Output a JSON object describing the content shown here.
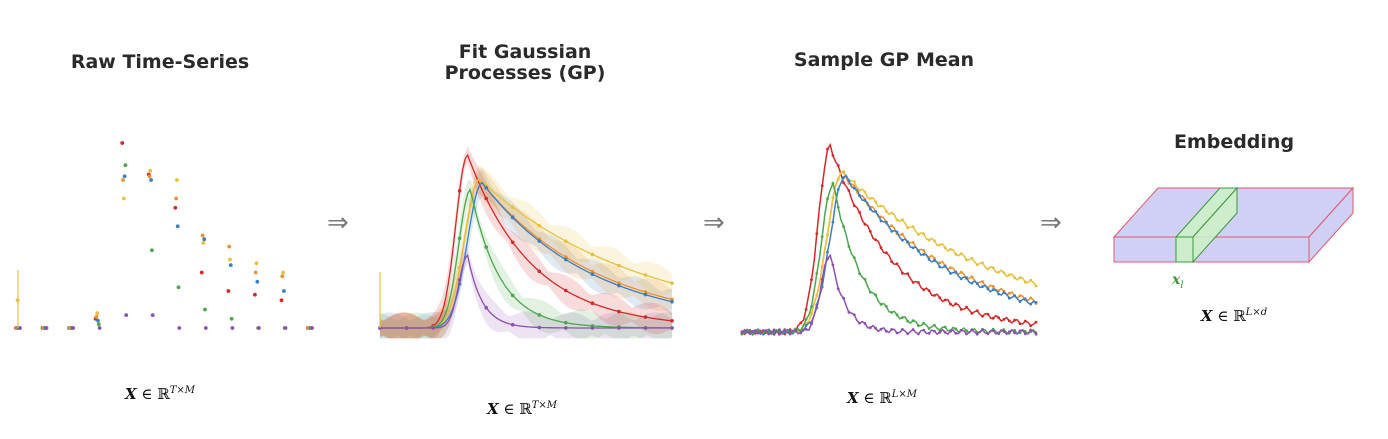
{
  "panels": [
    {
      "title_line1": "Raw Time-Series",
      "title_line2": "",
      "math_var": "X",
      "math_space": "∈ ℝ",
      "math_sup": "T×M"
    },
    {
      "title_line1": "Fit Gaussian",
      "title_line2": "Processes (GP)",
      "math_var": "X",
      "math_space": "∈ ℝ",
      "math_sup": "T×M"
    },
    {
      "title_line1": "Sample GP Mean",
      "title_line2": "",
      "math_var": "X",
      "math_space": "∈ ℝ",
      "math_sup": "L×M"
    },
    {
      "title_line1": "Embedding",
      "title_line2": "",
      "math_var": "X",
      "math_space": "∈ ℝ",
      "math_sup": "L×d"
    }
  ],
  "arrow_symbol": "⇒",
  "embedding_label": {
    "var": "x",
    "sub": "l"
  },
  "colors": {
    "red": "#d62728",
    "orange": "#f28e2b",
    "yellow": "#e8c13a",
    "blue": "#3a7fc0",
    "green": "#4aa84a",
    "purple": "#8e4fb0",
    "box_fill": "#c8c8f4",
    "box_edge": "#e05a6a",
    "slice_fill": "#ccf2c4",
    "slice_edge": "#3a9a3a"
  },
  "series_colors": [
    "red",
    "orange",
    "yellow",
    "blue",
    "green",
    "purple"
  ],
  "raw_times": [
    0,
    1,
    2,
    3,
    4,
    5,
    6,
    7,
    8,
    9,
    10,
    11
  ],
  "raw_values": {
    "red": [
      0.0,
      0.0,
      0.0,
      0.05,
      1.0,
      0.83,
      0.65,
      0.3,
      0.2,
      0.18,
      0.15,
      0.0
    ],
    "orange": [
      0.0,
      0.0,
      0.0,
      0.06,
      0.8,
      0.82,
      0.7,
      0.5,
      0.44,
      0.3,
      0.28,
      0.0
    ],
    "yellow": [
      0.15,
      0.0,
      0.0,
      0.08,
      0.7,
      0.85,
      0.8,
      0.46,
      0.37,
      0.35,
      0.3,
      0.0
    ],
    "blue": [
      0.0,
      0.0,
      0.0,
      0.04,
      0.82,
      0.8,
      0.55,
      0.48,
      0.34,
      0.25,
      0.2,
      0.0
    ],
    "green": [
      0.0,
      0.0,
      0.0,
      0.02,
      0.88,
      0.42,
      0.22,
      0.1,
      0.05,
      0.0,
      0.0,
      0.0
    ],
    "purple": [
      0.0,
      0.0,
      0.0,
      0.0,
      0.07,
      0.07,
      0.0,
      0.0,
      0.0,
      0.0,
      0.0,
      0.0
    ]
  },
  "curve_shapes": {
    "red": {
      "peak": 0.3,
      "height": 1.0,
      "rise": 0.04,
      "decay": 0.22
    },
    "orange": {
      "peak": 0.34,
      "height": 0.86,
      "rise": 0.05,
      "decay": 0.4
    },
    "yellow": {
      "peak": 0.34,
      "height": 0.86,
      "rise": 0.05,
      "decay": 0.55
    },
    "blue": {
      "peak": 0.35,
      "height": 0.84,
      "rise": 0.05,
      "decay": 0.38
    },
    "green": {
      "peak": 0.31,
      "height": 0.8,
      "rise": 0.04,
      "decay": 0.1
    },
    "purple": {
      "peak": 0.3,
      "height": 0.42,
      "rise": 0.03,
      "decay": 0.05
    }
  }
}
